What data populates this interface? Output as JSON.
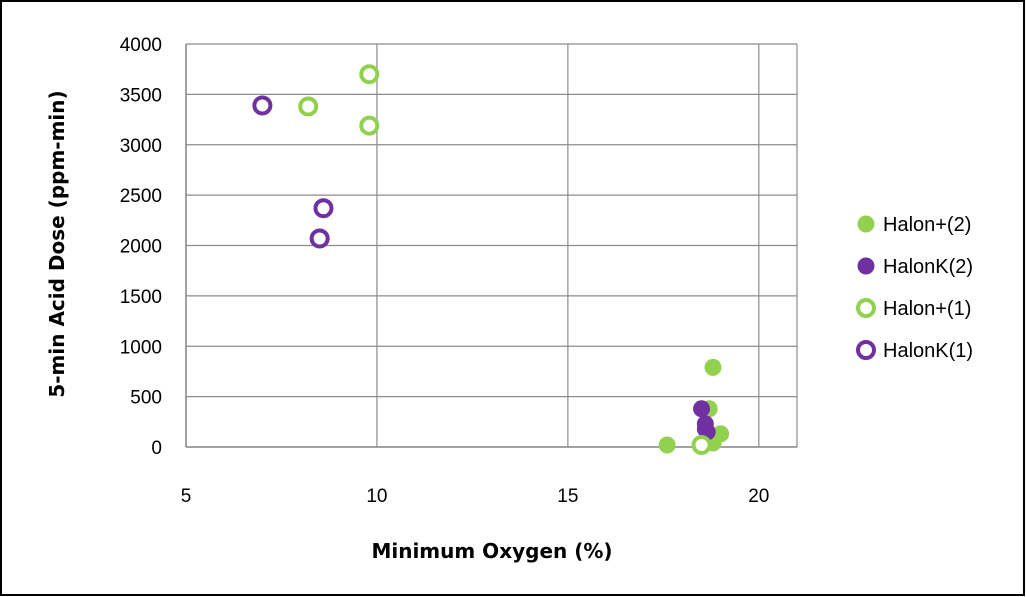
{
  "chart_data": {
    "type": "scatter",
    "title": "",
    "xlabel": "Minimum Oxygen (%)",
    "ylabel": "5-min Acid Dose (ppm-min)",
    "xlim": [
      5,
      21
    ],
    "ylim": [
      0,
      4000
    ],
    "xticks": [
      5,
      10,
      15,
      20
    ],
    "yticks": [
      0,
      500,
      1000,
      1500,
      2000,
      2500,
      3000,
      3500,
      4000
    ],
    "grid": true,
    "legend_position": "right",
    "series": [
      {
        "name": "Halon+(2)",
        "marker": "filled-circle",
        "color": "#92d050",
        "points": [
          {
            "x": 17.6,
            "y": 20
          },
          {
            "x": 18.8,
            "y": 790
          },
          {
            "x": 18.7,
            "y": 380
          },
          {
            "x": 19.0,
            "y": 130
          },
          {
            "x": 18.8,
            "y": 40
          }
        ]
      },
      {
        "name": "HalonK(2)",
        "marker": "filled-circle",
        "color": "#7030a0",
        "points": [
          {
            "x": 18.5,
            "y": 380
          },
          {
            "x": 18.6,
            "y": 230
          },
          {
            "x": 18.6,
            "y": 180
          },
          {
            "x": 18.65,
            "y": 150
          }
        ]
      },
      {
        "name": "Halon+(1)",
        "marker": "hollow-circle",
        "color": "#92d050",
        "points": [
          {
            "x": 9.8,
            "y": 3700
          },
          {
            "x": 8.2,
            "y": 3380
          },
          {
            "x": 9.8,
            "y": 3190
          },
          {
            "x": 18.5,
            "y": 20
          }
        ]
      },
      {
        "name": "HalonK(1)",
        "marker": "hollow-circle",
        "color": "#7030a0",
        "points": [
          {
            "x": 7.0,
            "y": 3390
          },
          {
            "x": 8.6,
            "y": 2370
          },
          {
            "x": 8.5,
            "y": 2070
          }
        ]
      }
    ]
  }
}
